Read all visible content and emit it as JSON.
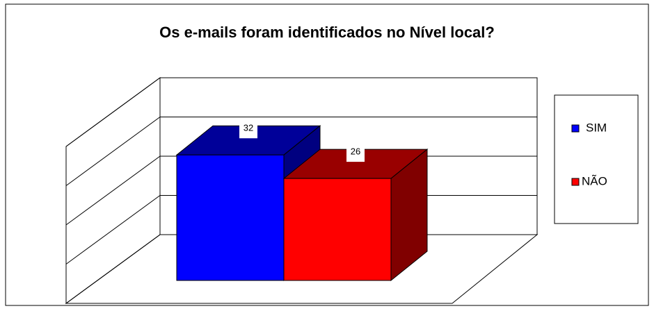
{
  "chart_data": {
    "type": "bar3d",
    "title": "Os e-mails foram identificados no Nível local?",
    "categories": [
      "SIM",
      "NÃO"
    ],
    "values": [
      32,
      26
    ],
    "colors": [
      "#0000ff",
      "#ff0000"
    ],
    "ylim": [
      0,
      40
    ],
    "yticks": [
      0,
      10,
      20,
      30,
      40
    ],
    "grid": true,
    "legend": "right"
  }
}
